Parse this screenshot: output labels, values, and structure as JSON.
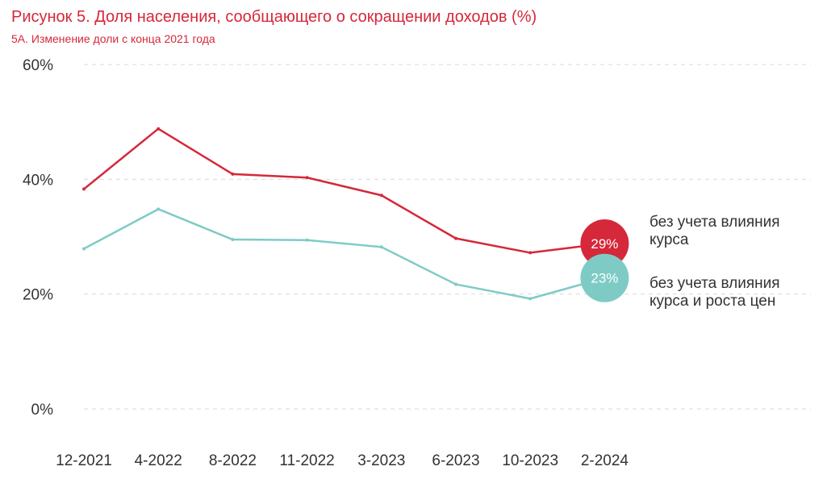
{
  "figure": {
    "title": "Рисунок 5. Доля населения, сообщающего о сокращении доходов (%)",
    "subtitle": "5А. Изменение доли с конца 2021 года"
  },
  "chart_data": {
    "type": "line",
    "categories": [
      "12-2021",
      "4-2022",
      "8-2022",
      "11-2022",
      "3-2023",
      "6-2023",
      "10-2023",
      "2-2024"
    ],
    "y_ticks": [
      "0%",
      "20%",
      "40%",
      "60%"
    ],
    "ylim": [
      0,
      60
    ],
    "grid": true,
    "series": [
      {
        "label_lines": [
          "без учета влияния",
          "курса"
        ],
        "color": "#d5283a",
        "values": [
          38.3,
          48.8,
          40.9,
          40.3,
          37.2,
          29.7,
          27.2,
          28.8
        ],
        "end_label": "29%"
      },
      {
        "label_lines": [
          "без учета влияния",
          "курса и роста цен"
        ],
        "color": "#7ecbc6",
        "values": [
          27.9,
          34.8,
          29.5,
          29.4,
          28.2,
          21.7,
          19.2,
          22.8
        ],
        "end_label": "23%"
      }
    ]
  }
}
